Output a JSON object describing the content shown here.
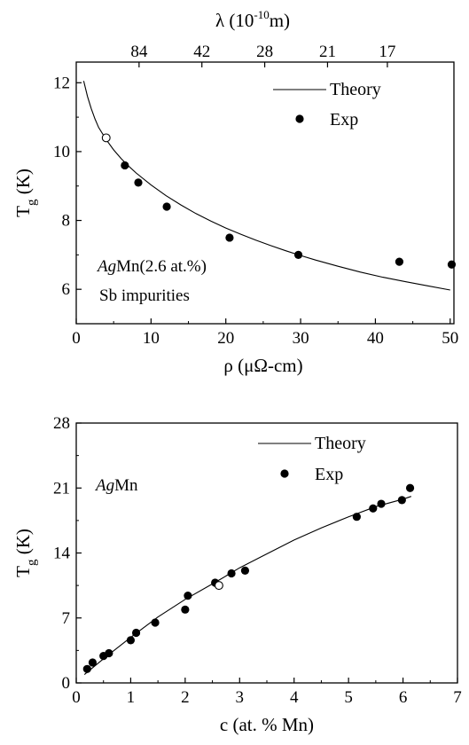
{
  "chart_data": [
    {
      "type": "scatter",
      "xlabel": "ρ (μΩ-cm)",
      "ylabel_main": "T",
      "ylabel_sub": "g",
      "ylabel_unit": "(K)",
      "top_xlabel_pre": "λ (10",
      "top_xlabel_exp": "-10",
      "top_xlabel_post": "m)",
      "xlim": [
        0,
        50.5
      ],
      "ylim": [
        5,
        12.6
      ],
      "xticks": [
        0,
        10,
        20,
        30,
        40,
        50
      ],
      "yticks": [
        6,
        8,
        10,
        12
      ],
      "top_ticks": [
        {
          "label": "84",
          "x": 8.4
        },
        {
          "label": "42",
          "x": 16.8
        },
        {
          "label": "28",
          "x": 25.2
        },
        {
          "label": "21",
          "x": 33.6
        },
        {
          "label": "17",
          "x": 41.6
        }
      ],
      "annotations": [
        {
          "italic": "Ag",
          "rest": "Mn(2.6 at.%)"
        },
        {
          "italic": "",
          "rest": "Sb impurities"
        }
      ],
      "legend": {
        "placement": "top-right",
        "theory_label": "Theory",
        "exp_label": "Exp"
      },
      "series": [
        {
          "name": "Theory",
          "kind": "line",
          "points": [
            [
              1.0,
              12.05
            ],
            [
              1.5,
              11.6
            ],
            [
              2,
              11.25
            ],
            [
              2.5,
              10.95
            ],
            [
              3,
              10.7
            ],
            [
              4,
              10.35
            ],
            [
              5,
              10.05
            ],
            [
              6,
              9.8
            ],
            [
              7,
              9.58
            ],
            [
              8,
              9.38
            ],
            [
              10,
              9.03
            ],
            [
              12,
              8.72
            ],
            [
              14,
              8.45
            ],
            [
              16,
              8.2
            ],
            [
              18,
              7.98
            ],
            [
              20,
              7.78
            ],
            [
              22,
              7.6
            ],
            [
              24,
              7.43
            ],
            [
              26,
              7.27
            ],
            [
              28,
              7.12
            ],
            [
              30,
              6.98
            ],
            [
              32,
              6.85
            ],
            [
              35,
              6.67
            ],
            [
              38,
              6.5
            ],
            [
              41,
              6.35
            ],
            [
              44,
              6.22
            ],
            [
              47,
              6.1
            ],
            [
              50,
              5.98
            ]
          ]
        },
        {
          "name": "Exp",
          "kind": "scatter",
          "points": [
            [
              6.5,
              9.6
            ],
            [
              8.3,
              9.1
            ],
            [
              12.1,
              8.4
            ],
            [
              20.5,
              7.5
            ],
            [
              29.7,
              7.0
            ],
            [
              43.2,
              6.8
            ],
            [
              50.2,
              6.72
            ]
          ]
        },
        {
          "name": "",
          "kind": "open",
          "points": [
            [
              4.0,
              10.4
            ]
          ]
        }
      ]
    },
    {
      "type": "scatter",
      "xlabel": "c (at. % Mn)",
      "ylabel_main": "T",
      "ylabel_sub": "g",
      "ylabel_unit": "(K)",
      "xlim": [
        0,
        7
      ],
      "ylim": [
        0,
        28
      ],
      "xticks": [
        0,
        1,
        2,
        3,
        4,
        5,
        6,
        7
      ],
      "yticks": [
        0,
        7,
        14,
        21,
        28
      ],
      "annotations": [
        {
          "italic": "Ag",
          "rest": "Mn"
        }
      ],
      "legend": {
        "placement": "top-right",
        "theory_label": "Theory",
        "exp_label": "Exp"
      },
      "series": [
        {
          "name": "Theory",
          "kind": "line",
          "points": [
            [
              0.15,
              0.9
            ],
            [
              0.5,
              2.6
            ],
            [
              1.0,
              4.9
            ],
            [
              1.5,
              7.1
            ],
            [
              2.0,
              9.0
            ],
            [
              2.6,
              11.0
            ],
            [
              3.0,
              12.4
            ],
            [
              3.5,
              13.9
            ],
            [
              4.0,
              15.4
            ],
            [
              4.5,
              16.7
            ],
            [
              5.0,
              17.9
            ],
            [
              5.5,
              19.0
            ],
            [
              6.0,
              19.8
            ],
            [
              6.15,
              20.1
            ]
          ]
        },
        {
          "name": "Exp",
          "kind": "scatter",
          "points": [
            [
              0.2,
              1.5
            ],
            [
              0.3,
              2.2
            ],
            [
              0.5,
              2.9
            ],
            [
              0.6,
              3.2
            ],
            [
              1.0,
              4.6
            ],
            [
              1.1,
              5.4
            ],
            [
              1.45,
              6.5
            ],
            [
              2.0,
              7.9
            ],
            [
              2.05,
              9.4
            ],
            [
              2.55,
              10.8
            ],
            [
              2.85,
              11.8
            ],
            [
              3.1,
              12.1
            ],
            [
              5.15,
              17.9
            ],
            [
              5.45,
              18.8
            ],
            [
              5.6,
              19.3
            ],
            [
              5.98,
              19.7
            ],
            [
              6.13,
              21.0
            ]
          ]
        },
        {
          "name": "",
          "kind": "open",
          "points": [
            [
              2.62,
              10.5
            ]
          ]
        }
      ]
    }
  ]
}
